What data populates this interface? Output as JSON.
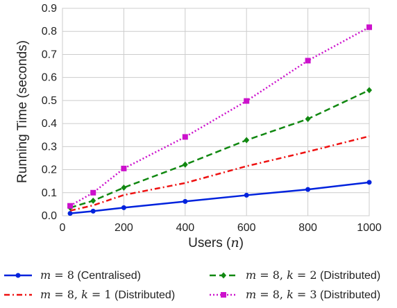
{
  "chart_data": {
    "type": "line",
    "xlabel": "Users (",
    "xlabel_var": "n",
    "xlabel_close": ")",
    "ylabel": "Running Time (seconds)",
    "xlim": [
      0,
      1000
    ],
    "ylim": [
      0,
      0.9
    ],
    "x_ticks": [
      0,
      200,
      400,
      600,
      800,
      1000
    ],
    "y_ticks": [
      "0.0",
      "0.1",
      "0.2",
      "0.3",
      "0.4",
      "0.5",
      "0.6",
      "0.7",
      "0.8",
      "0.9"
    ],
    "grid": true,
    "legend_position": "bottom",
    "x": [
      25,
      100,
      200,
      400,
      600,
      800,
      1000
    ],
    "series": [
      {
        "name": "m = 8 (Centralised)",
        "legend_parts": [
          [
            "m",
            "math"
          ],
          [
            " = ",
            "mathn"
          ],
          [
            "8",
            "mathn"
          ],
          [
            " (Centralised)",
            "text"
          ]
        ],
        "color": "#0022dd",
        "style": "solid",
        "marker": "circle",
        "values": [
          0.01,
          0.02,
          0.035,
          0.062,
          0.089,
          0.114,
          0.145
        ]
      },
      {
        "name": "m = 8, k = 1 (Distributed)",
        "legend_parts": [
          [
            "m",
            "math"
          ],
          [
            " = ",
            "mathn"
          ],
          [
            "8, ",
            "mathn"
          ],
          [
            "k",
            "math"
          ],
          [
            " = ",
            "mathn"
          ],
          [
            "1",
            "mathn"
          ],
          [
            " (Distributed)",
            "text"
          ]
        ],
        "color": "#ee1111",
        "style": "dashdot",
        "marker": "none",
        "values": [
          0.022,
          0.045,
          0.09,
          0.142,
          0.215,
          0.278,
          0.345
        ]
      },
      {
        "name": "m = 8, k = 2 (Distributed)",
        "legend_parts": [
          [
            "m",
            "math"
          ],
          [
            " = ",
            "mathn"
          ],
          [
            "8, ",
            "mathn"
          ],
          [
            "k",
            "math"
          ],
          [
            " = ",
            "mathn"
          ],
          [
            "2",
            "mathn"
          ],
          [
            " (Distributed)",
            "text"
          ]
        ],
        "color": "#118811",
        "style": "dashed",
        "marker": "diamond",
        "values": [
          0.035,
          0.065,
          0.122,
          0.222,
          0.328,
          0.42,
          0.545
        ]
      },
      {
        "name": "m = 8, k = 3 (Distributed)",
        "legend_parts": [
          [
            "m",
            "math"
          ],
          [
            " = ",
            "mathn"
          ],
          [
            "8, ",
            "mathn"
          ],
          [
            "k",
            "math"
          ],
          [
            " = ",
            "mathn"
          ],
          [
            "3",
            "mathn"
          ],
          [
            " (Distributed)",
            "text"
          ]
        ],
        "color": "#cc11cc",
        "style": "dotted",
        "marker": "square",
        "values": [
          0.043,
          0.1,
          0.205,
          0.342,
          0.498,
          0.673,
          0.818
        ]
      }
    ]
  }
}
